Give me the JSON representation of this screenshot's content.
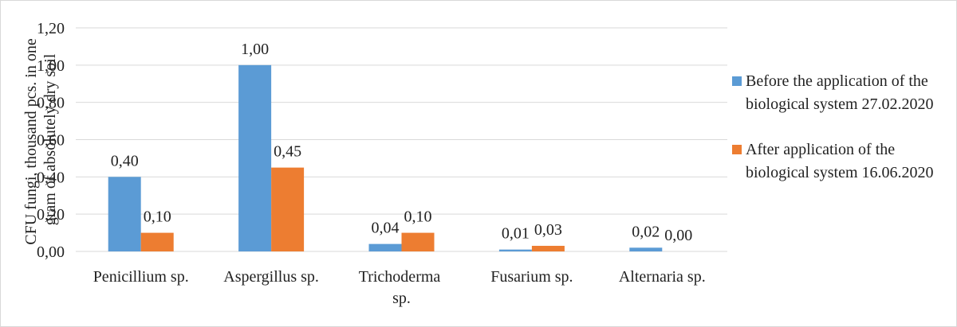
{
  "chart_data": {
    "type": "bar",
    "y_label": "CFU fungi, thousand pcs. in one gram of absolutely dry soil",
    "categories": [
      "Penicillium sp.",
      "Aspergillus sp.",
      "Trichoderma sp.",
      "Fusarium sp.",
      "Alternaria sp."
    ],
    "series": [
      {
        "name": "Before the application of the biological system 27.02.2020",
        "color": "#5b9bd5",
        "values": [
          0.4,
          1.0,
          0.04,
          0.01,
          0.02
        ],
        "value_labels": [
          "0,40",
          "1,00",
          "0,04",
          "0,01",
          "0,02"
        ]
      },
      {
        "name": "After application of the biological system 16.06.2020",
        "color": "#ed7d31",
        "values": [
          0.1,
          0.45,
          0.1,
          0.03,
          0.0
        ],
        "value_labels": [
          "0,10",
          "0,45",
          "0,10",
          "0,03",
          "0,00"
        ]
      }
    ],
    "ylim": [
      0,
      1.2
    ],
    "yticks": [
      {
        "value": 0,
        "label": "0,00"
      },
      {
        "value": 0.2,
        "label": "0,20"
      },
      {
        "value": 0.4,
        "label": "0,40"
      },
      {
        "value": 0.6,
        "label": "0,60"
      },
      {
        "value": 0.8,
        "label": "0,80"
      },
      {
        "value": 1.0,
        "label": "1,00"
      },
      {
        "value": 1.2,
        "label": "1,20"
      }
    ],
    "grid": true,
    "legend": "right"
  }
}
